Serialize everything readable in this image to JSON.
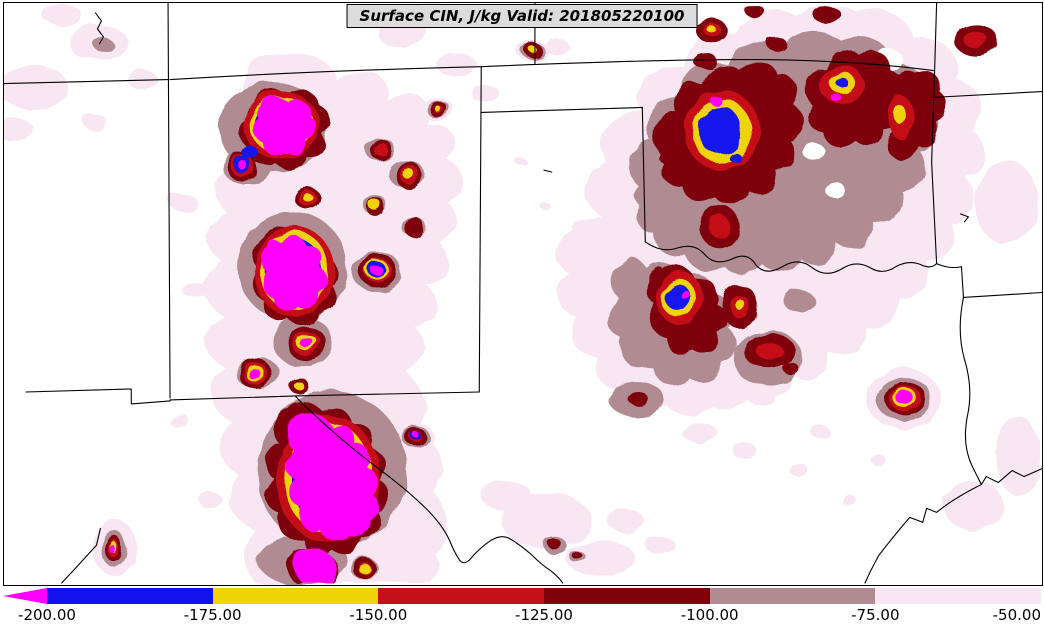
{
  "map": {
    "title": "Surface CIN, J/kg Valid: 201805220100"
  },
  "palette": {
    "magenta": "#FF00FF",
    "blue": "#1212EE",
    "yellow": "#EFD408",
    "red": "#C41019",
    "darkred": "#7E040A",
    "mauve": "#B08C92",
    "pale": "#F8E6F3",
    "hole": "#FFFFFF",
    "boundary": "#000000",
    "titlebox_bg": "#DCDCDC",
    "titlebox_border": "#000000"
  },
  "chart_data": {
    "type": "heatmap",
    "title": "Surface CIN, J/kg Valid: 201805220100",
    "variable": "Surface CIN",
    "units": "J/kg",
    "valid_time": "201805220100",
    "legend_position": "bottom",
    "colorbar": {
      "orientation": "horizontal",
      "extend": "min",
      "extend_color": "#FF00FF",
      "tick_labels": [
        "-200.00",
        "-175.00",
        "-150.00",
        "-125.00",
        "-100.00",
        "-75.00",
        "-50.00"
      ],
      "tick_values": [
        -200,
        -175,
        -150,
        -125,
        -100,
        -75,
        -50
      ],
      "bins": [
        {
          "min": -200,
          "max": -175,
          "color": "#1212EE",
          "label": "-200 to -175"
        },
        {
          "min": -175,
          "max": -150,
          "color": "#EFD408",
          "label": "-175 to -150"
        },
        {
          "min": -150,
          "max": -125,
          "color": "#C41019",
          "label": "-150 to -125"
        },
        {
          "min": -125,
          "max": -100,
          "color": "#7E040A",
          "label": "-125 to -100"
        },
        {
          "min": -100,
          "max": -75,
          "color": "#B08C92",
          "label": "-100 to -75"
        },
        {
          "min": -75,
          "max": -50,
          "color": "#F8E6F3",
          "label": "-75 to -50"
        }
      ]
    }
  }
}
